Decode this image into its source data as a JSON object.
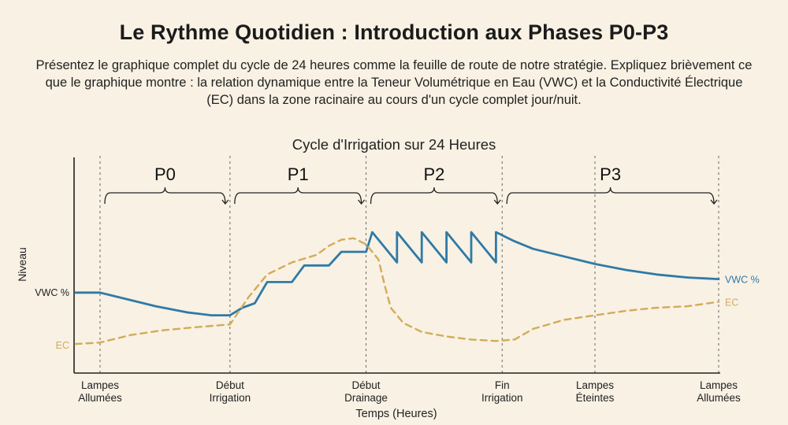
{
  "page": {
    "title": "Le Rythme Quotidien : Introduction aux Phases P0-P3",
    "intro": "Présentez le graphique complet du cycle de 24 heures comme la feuille de route de notre stratégie. Expliquez brièvement ce que le graphique montre : la relation dynamique entre la Teneur Volumétrique en Eau (VWC) et la Conductivité Électrique (EC) dans la zone racinaire au cours d'un cycle complet jour/nuit."
  },
  "colors": {
    "background": "#f8f1e4",
    "vwc": "#2f7aa6",
    "ec": "#d3ab5b",
    "axis": "#222222",
    "guide": "#666666"
  },
  "chart_data": {
    "type": "line",
    "title": "Cycle d'Irrigation sur 24 Heures",
    "xlabel": "Temps (Heures)",
    "ylabel": "Niveau",
    "xlim": [
      0,
      100
    ],
    "ylim": [
      0,
      100
    ],
    "grid": false,
    "legend": "inline labels at the right end of each series",
    "events": [
      {
        "x": 0,
        "label": [
          "Lampes",
          "Allumées"
        ]
      },
      {
        "x": 21,
        "label": [
          "Début",
          "Irrigation"
        ]
      },
      {
        "x": 43,
        "label": [
          "Début",
          "Drainage"
        ]
      },
      {
        "x": 65,
        "label": [
          "Fin",
          "Irrigation"
        ]
      },
      {
        "x": 80,
        "label": [
          "Lampes",
          "Éteintes"
        ]
      },
      {
        "x": 100,
        "label": [
          "Lampes",
          "Allumées"
        ]
      }
    ],
    "phases": [
      {
        "label": "P0",
        "start": 0,
        "end": 21
      },
      {
        "label": "P1",
        "start": 21,
        "end": 43
      },
      {
        "label": "P2",
        "start": 43,
        "end": 65
      },
      {
        "label": "P3",
        "start": 65,
        "end": 100
      }
    ],
    "y_side_labels": [
      {
        "series": "VWC",
        "text": "VWC %",
        "y": 48
      },
      {
        "series": "EC",
        "text": "EC",
        "y": 13
      }
    ],
    "series": [
      {
        "name": "VWC %",
        "end_label": "VWC %",
        "color": "#2f7aa6",
        "style": "solid",
        "points": [
          [
            -4,
            48
          ],
          [
            0,
            48
          ],
          [
            4,
            44
          ],
          [
            9,
            39
          ],
          [
            14,
            35
          ],
          [
            18,
            33
          ],
          [
            21,
            33
          ],
          [
            23,
            38
          ],
          [
            25,
            41
          ],
          [
            27,
            55
          ],
          [
            31,
            55
          ],
          [
            33,
            66
          ],
          [
            37,
            66
          ],
          [
            39,
            75
          ],
          [
            43,
            75
          ],
          [
            44,
            88
          ],
          [
            48,
            68
          ],
          [
            48,
            88
          ],
          [
            52,
            68
          ],
          [
            52,
            88
          ],
          [
            56,
            68
          ],
          [
            56,
            88
          ],
          [
            60,
            68
          ],
          [
            60,
            88
          ],
          [
            64,
            68
          ],
          [
            64,
            88
          ],
          [
            67,
            82
          ],
          [
            70,
            77
          ],
          [
            75,
            72
          ],
          [
            80,
            67
          ],
          [
            85,
            63
          ],
          [
            90,
            60
          ],
          [
            95,
            58
          ],
          [
            100,
            57
          ]
        ]
      },
      {
        "name": "EC",
        "end_label": "EC",
        "color": "#d3ab5b",
        "style": "dashed",
        "points": [
          [
            -4,
            14
          ],
          [
            0,
            15
          ],
          [
            5,
            20
          ],
          [
            10,
            23
          ],
          [
            15,
            25
          ],
          [
            21,
            27
          ],
          [
            24,
            45
          ],
          [
            27,
            60
          ],
          [
            31,
            68
          ],
          [
            35,
            73
          ],
          [
            37,
            79
          ],
          [
            39,
            83
          ],
          [
            41,
            84
          ],
          [
            43,
            80
          ],
          [
            45,
            70
          ],
          [
            46,
            53
          ],
          [
            47,
            38
          ],
          [
            49,
            28
          ],
          [
            52,
            22
          ],
          [
            56,
            19
          ],
          [
            60,
            17
          ],
          [
            64,
            16
          ],
          [
            67,
            17
          ],
          [
            70,
            24
          ],
          [
            75,
            30
          ],
          [
            80,
            33
          ],
          [
            85,
            36
          ],
          [
            90,
            38
          ],
          [
            95,
            39
          ],
          [
            100,
            42
          ]
        ]
      }
    ]
  }
}
